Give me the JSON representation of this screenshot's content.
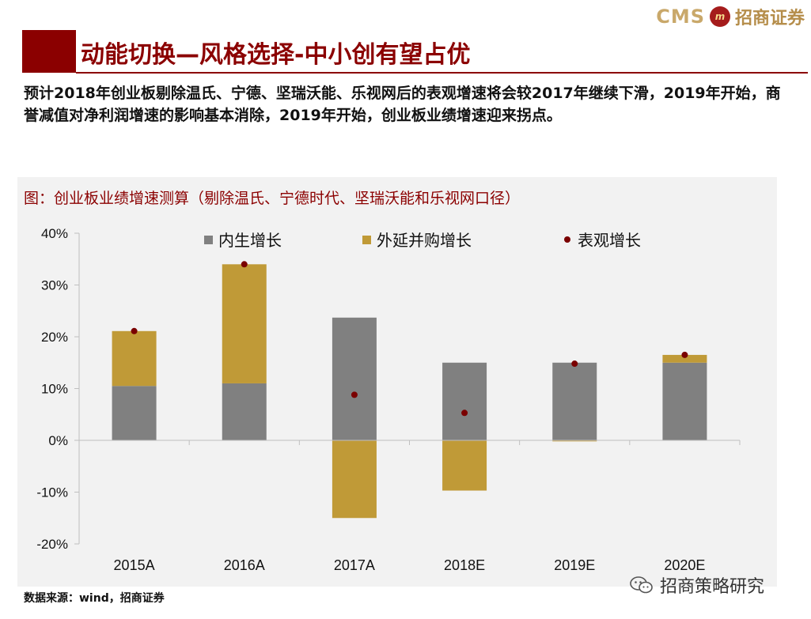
{
  "header": {
    "logo_latin": "CMS",
    "logo_mark": "m",
    "logo_cn": "招商证券"
  },
  "page_title": "动能切换—风格选择-中小创有望占优",
  "intro_text": "预计2018年创业板剔除温氏、宁德、坚瑞沃能、乐视网后的表观增速将会较2017年继续下滑，2019年开始，商誉减值对净利润增速的影响基本消除，2019年开始，创业板业绩增速迎来拐点。",
  "figure_title": "图：创业板业绩增速测算（剔除温氏、宁德时代、坚瑞沃能和乐视网口径）",
  "source": "数据来源：wind，招商证券",
  "watermark": "招商策略研究",
  "colors": {
    "organic": "#808080",
    "mna": "#c09a37",
    "apparent": "#7a0000",
    "brand": "#8b0000"
  },
  "chart_data": {
    "type": "bar",
    "stacked": true,
    "title": "图：创业板业绩增速测算（剔除温氏、宁德时代、坚瑞沃能和乐视网口径）",
    "categories": [
      "2015A",
      "2016A",
      "2017A",
      "2018E",
      "2019E",
      "2020E"
    ],
    "ylim": [
      -20,
      40
    ],
    "yticks": [
      -20,
      -10,
      0,
      10,
      20,
      30,
      40
    ],
    "ytick_labels": [
      "-20%",
      "-10%",
      "0%",
      "10%",
      "20%",
      "30%",
      "40%"
    ],
    "legend_position": "top",
    "series": [
      {
        "name": "内生增长",
        "kind": "bar",
        "values": [
          10.5,
          11.0,
          23.7,
          15.0,
          15.0,
          15.0
        ]
      },
      {
        "name": "外延并购增长",
        "kind": "bar",
        "values": [
          10.6,
          23.0,
          -15.0,
          -9.7,
          -0.2,
          1.5
        ]
      },
      {
        "name": "表观增长",
        "kind": "point",
        "values": [
          21.1,
          34.0,
          8.8,
          5.3,
          14.8,
          16.5
        ]
      }
    ]
  }
}
